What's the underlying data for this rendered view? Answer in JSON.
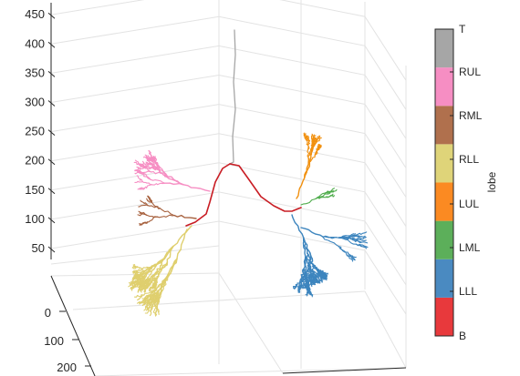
{
  "chart_data": {
    "type": "3d-line",
    "title": "",
    "z_axis": {
      "ticks": [
        50,
        100,
        150,
        200,
        250,
        300,
        350,
        400,
        450
      ]
    },
    "y_axis": {
      "ticks": [
        0,
        100,
        200
      ]
    },
    "grid": true,
    "colorbar": {
      "label": "lobe",
      "placement": "right",
      "categories": [
        {
          "name": "B",
          "color": "#e8393c"
        },
        {
          "name": "LLL",
          "color": "#4a8ac1"
        },
        {
          "name": "LML",
          "color": "#5caf5a"
        },
        {
          "name": "LUL",
          "color": "#fb8a22"
        },
        {
          "name": "RLL",
          "color": "#dfd479"
        },
        {
          "name": "RML",
          "color": "#b0704d"
        },
        {
          "name": "RUL",
          "color": "#f68ec3"
        },
        {
          "name": "T",
          "color": "#a6a6a6"
        }
      ]
    },
    "series": [
      {
        "name": "T",
        "color": "#a6a6a6"
      },
      {
        "name": "B",
        "color": "#c91d24"
      },
      {
        "name": "RUL",
        "color": "#f68ec3"
      },
      {
        "name": "RML",
        "color": "#a6603d"
      },
      {
        "name": "RLL",
        "color": "#dfcf6e"
      },
      {
        "name": "LUL",
        "color": "#f1900f"
      },
      {
        "name": "LML",
        "color": "#4eac4b"
      },
      {
        "name": "LLL",
        "color": "#3d85be"
      }
    ]
  }
}
